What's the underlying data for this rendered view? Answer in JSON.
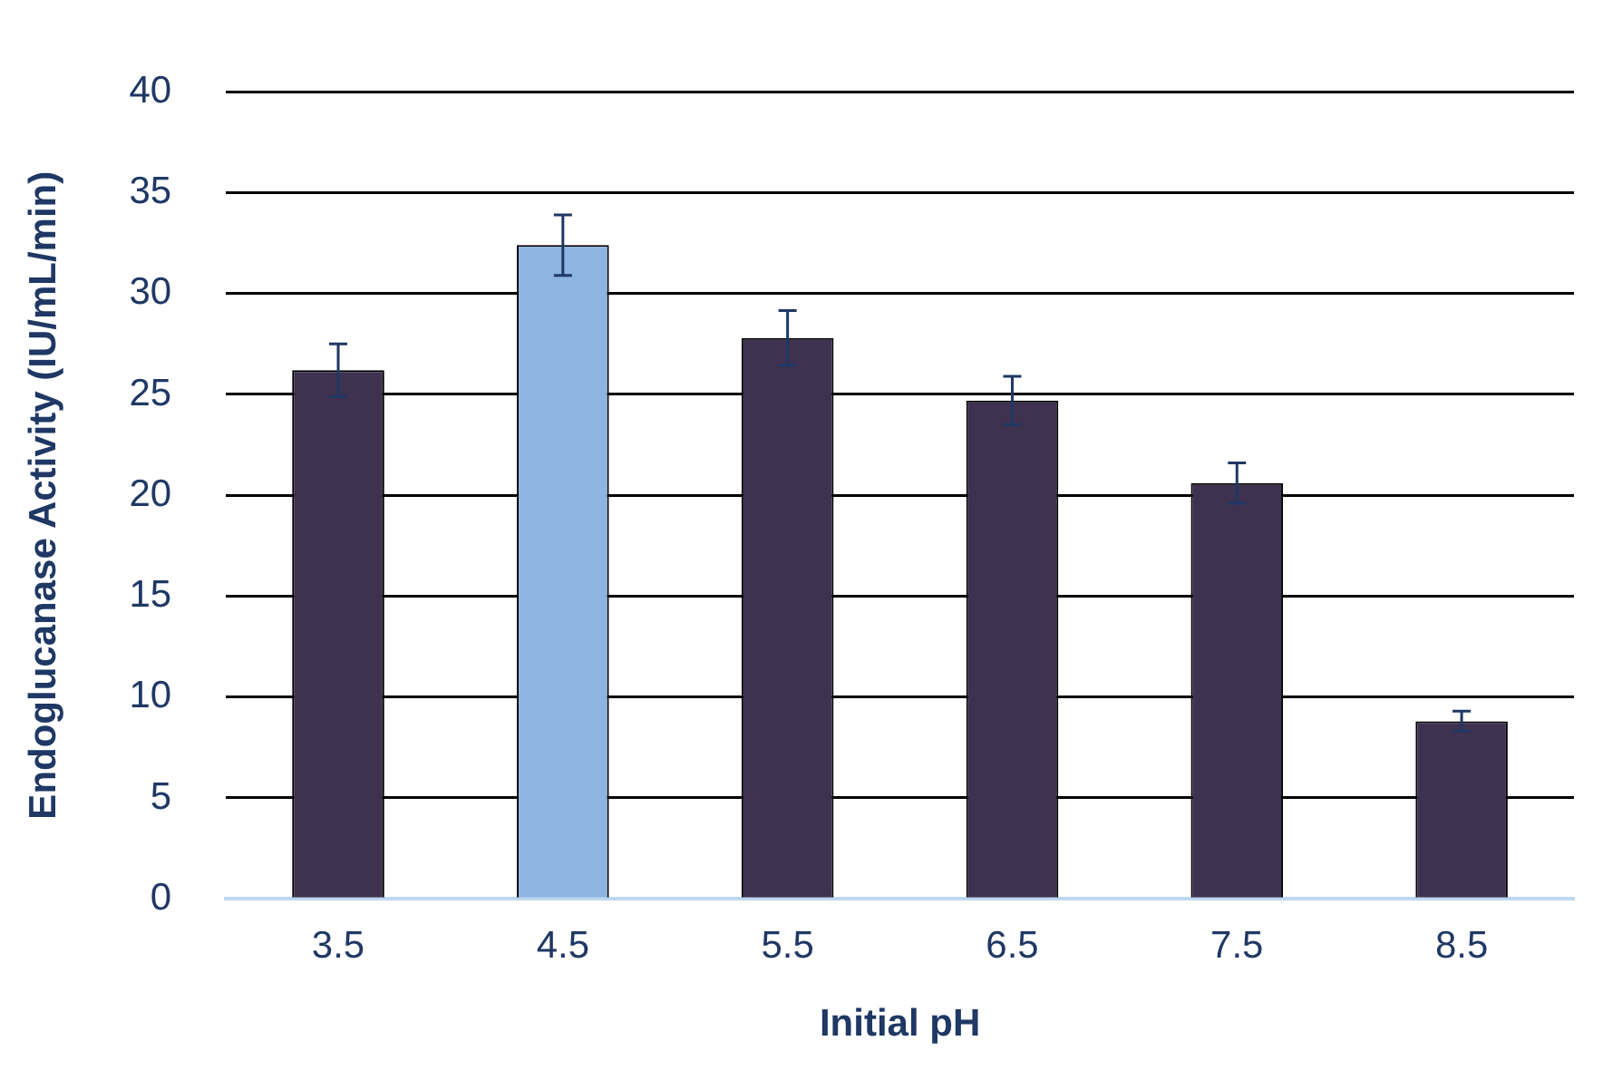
{
  "chart_data": {
    "type": "bar",
    "xlabel": "Initial pH",
    "ylabel": "Endoglucanase Activity (IU/mL/min)",
    "categories": [
      "3.5",
      "4.5",
      "5.5",
      "6.5",
      "7.5",
      "8.5"
    ],
    "values": [
      26.2,
      32.4,
      27.8,
      24.7,
      20.6,
      8.8
    ],
    "colors": [
      "#3f3150",
      "#8db4e2",
      "#3f3150",
      "#3f3150",
      "#3f3150",
      "#3f3150"
    ],
    "errors": [
      1.3,
      1.5,
      1.35,
      1.2,
      1.0,
      0.5
    ],
    "ylim": [
      0,
      40
    ],
    "yticks": [
      0,
      5,
      10,
      15,
      20,
      25,
      30,
      35,
      40
    ],
    "grid": "y",
    "legend": false
  }
}
